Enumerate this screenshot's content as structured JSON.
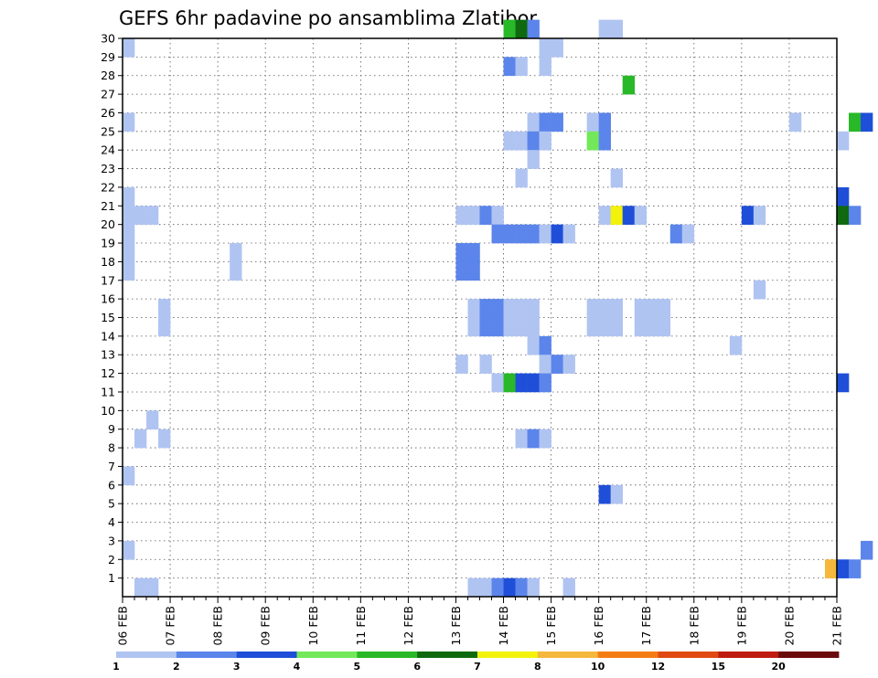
{
  "chart_data": {
    "type": "heatmap",
    "title": "GEFS 6hr padavine po ansamblima Zlatibor",
    "xlabel": "",
    "ylabel": "",
    "x_tick_labels": [
      "06 FEB",
      "07 FEB",
      "08 FEB",
      "09 FEB",
      "10 FEB",
      "11 FEB",
      "12 FEB",
      "13 FEB",
      "14 FEB",
      "15 FEB",
      "16 FEB",
      "17 FEB",
      "18 FEB",
      "19 FEB",
      "20 FEB",
      "21 FEB"
    ],
    "y_tick_labels": [
      "1",
      "2",
      "3",
      "4",
      "5",
      "6",
      "7",
      "8",
      "9",
      "10",
      "11",
      "12",
      "13",
      "14",
      "15",
      "16",
      "17",
      "18",
      "19",
      "20",
      "21",
      "22",
      "23",
      "24",
      "25",
      "26",
      "27",
      "28",
      "29",
      "30"
    ],
    "y_range": [
      0,
      30
    ],
    "time_step_hours": 6,
    "grid": "dotted",
    "colorbar": {
      "levels": [
        "1",
        "2",
        "3",
        "4",
        "5",
        "6",
        "7",
        "8",
        "10",
        "12",
        "15",
        "20"
      ],
      "colors": [
        "#b0c4f2",
        "#5b85ea",
        "#1f4fd8",
        "#72e85a",
        "#28b828",
        "#0f6a0f",
        "#f2f20a",
        "#f5b83c",
        "#f57c14",
        "#e04a12",
        "#c01b10",
        "#6b0a0a"
      ],
      "position": "bottom"
    },
    "cells": [
      {
        "member": 30,
        "step": 32,
        "bin": 5
      },
      {
        "member": 30,
        "step": 33,
        "bin": 6
      },
      {
        "member": 30,
        "step": 34,
        "bin": 2
      },
      {
        "member": 30,
        "step": 40,
        "bin": 1
      },
      {
        "member": 30,
        "step": 41,
        "bin": 1
      },
      {
        "member": 29,
        "step": 0,
        "bin": 1
      },
      {
        "member": 29,
        "step": 35,
        "bin": 1
      },
      {
        "member": 29,
        "step": 36,
        "bin": 1
      },
      {
        "member": 28,
        "step": 32,
        "bin": 2
      },
      {
        "member": 28,
        "step": 33,
        "bin": 1
      },
      {
        "member": 28,
        "step": 35,
        "bin": 1
      },
      {
        "member": 27,
        "step": 42,
        "bin": 5
      },
      {
        "member": 25,
        "step": 0,
        "bin": 1
      },
      {
        "member": 25,
        "step": 34,
        "bin": 1
      },
      {
        "member": 25,
        "step": 35,
        "bin": 2
      },
      {
        "member": 25,
        "step": 36,
        "bin": 2
      },
      {
        "member": 25,
        "step": 39,
        "bin": 1
      },
      {
        "member": 25,
        "step": 40,
        "bin": 2
      },
      {
        "member": 25,
        "step": 56,
        "bin": 1
      },
      {
        "member": 25,
        "step": 61,
        "bin": 5
      },
      {
        "member": 25,
        "step": 62,
        "bin": 3
      },
      {
        "member": 24,
        "step": 32,
        "bin": 1
      },
      {
        "member": 24,
        "step": 33,
        "bin": 1
      },
      {
        "member": 24,
        "step": 34,
        "bin": 2
      },
      {
        "member": 24,
        "step": 35,
        "bin": 1
      },
      {
        "member": 24,
        "step": 39,
        "bin": 4
      },
      {
        "member": 24,
        "step": 40,
        "bin": 2
      },
      {
        "member": 24,
        "step": 60,
        "bin": 1
      },
      {
        "member": 23,
        "step": 34,
        "bin": 1
      },
      {
        "member": 22,
        "step": 33,
        "bin": 1
      },
      {
        "member": 22,
        "step": 41,
        "bin": 1
      },
      {
        "member": 21,
        "step": 0,
        "bin": 1
      },
      {
        "member": 21,
        "step": 60,
        "bin": 3
      },
      {
        "member": 20,
        "step": 0,
        "bin": 1
      },
      {
        "member": 20,
        "step": 1,
        "bin": 1
      },
      {
        "member": 20,
        "step": 2,
        "bin": 1
      },
      {
        "member": 20,
        "step": 28,
        "bin": 1
      },
      {
        "member": 20,
        "step": 29,
        "bin": 1
      },
      {
        "member": 20,
        "step": 30,
        "bin": 2
      },
      {
        "member": 20,
        "step": 31,
        "bin": 1
      },
      {
        "member": 20,
        "step": 40,
        "bin": 1
      },
      {
        "member": 20,
        "step": 41,
        "bin": 7
      },
      {
        "member": 20,
        "step": 42,
        "bin": 3
      },
      {
        "member": 20,
        "step": 43,
        "bin": 1
      },
      {
        "member": 20,
        "step": 52,
        "bin": 3
      },
      {
        "member": 20,
        "step": 53,
        "bin": 1
      },
      {
        "member": 20,
        "step": 60,
        "bin": 6
      },
      {
        "member": 20,
        "step": 61,
        "bin": 2
      },
      {
        "member": 19,
        "step": 0,
        "bin": 1
      },
      {
        "member": 19,
        "step": 31,
        "bin": 2
      },
      {
        "member": 19,
        "step": 32,
        "bin": 2
      },
      {
        "member": 19,
        "step": 33,
        "bin": 2
      },
      {
        "member": 19,
        "step": 34,
        "bin": 2
      },
      {
        "member": 19,
        "step": 35,
        "bin": 1
      },
      {
        "member": 19,
        "step": 36,
        "bin": 3
      },
      {
        "member": 19,
        "step": 37,
        "bin": 1
      },
      {
        "member": 19,
        "step": 46,
        "bin": 2
      },
      {
        "member": 19,
        "step": 47,
        "bin": 1
      },
      {
        "member": 18,
        "step": 0,
        "bin": 1
      },
      {
        "member": 18,
        "step": 9,
        "bin": 1
      },
      {
        "member": 18,
        "step": 28,
        "bin": 2
      },
      {
        "member": 18,
        "step": 29,
        "bin": 2
      },
      {
        "member": 17,
        "step": 0,
        "bin": 1
      },
      {
        "member": 17,
        "step": 9,
        "bin": 1
      },
      {
        "member": 17,
        "step": 28,
        "bin": 2
      },
      {
        "member": 17,
        "step": 29,
        "bin": 2
      },
      {
        "member": 16,
        "step": 53,
        "bin": 1
      },
      {
        "member": 15,
        "step": 3,
        "bin": 1
      },
      {
        "member": 15,
        "step": 29,
        "bin": 1
      },
      {
        "member": 15,
        "step": 30,
        "bin": 2
      },
      {
        "member": 15,
        "step": 31,
        "bin": 2
      },
      {
        "member": 15,
        "step": 32,
        "bin": 1
      },
      {
        "member": 15,
        "step": 33,
        "bin": 1
      },
      {
        "member": 15,
        "step": 34,
        "bin": 1
      },
      {
        "member": 15,
        "step": 39,
        "bin": 1
      },
      {
        "member": 15,
        "step": 40,
        "bin": 1
      },
      {
        "member": 15,
        "step": 41,
        "bin": 1
      },
      {
        "member": 15,
        "step": 43,
        "bin": 1
      },
      {
        "member": 15,
        "step": 44,
        "bin": 1
      },
      {
        "member": 15,
        "step": 45,
        "bin": 1
      },
      {
        "member": 14,
        "step": 3,
        "bin": 1
      },
      {
        "member": 14,
        "step": 29,
        "bin": 1
      },
      {
        "member": 14,
        "step": 30,
        "bin": 2
      },
      {
        "member": 14,
        "step": 31,
        "bin": 2
      },
      {
        "member": 14,
        "step": 32,
        "bin": 1
      },
      {
        "member": 14,
        "step": 33,
        "bin": 1
      },
      {
        "member": 14,
        "step": 34,
        "bin": 1
      },
      {
        "member": 14,
        "step": 39,
        "bin": 1
      },
      {
        "member": 14,
        "step": 40,
        "bin": 1
      },
      {
        "member": 14,
        "step": 41,
        "bin": 1
      },
      {
        "member": 14,
        "step": 43,
        "bin": 1
      },
      {
        "member": 14,
        "step": 44,
        "bin": 1
      },
      {
        "member": 14,
        "step": 45,
        "bin": 1
      },
      {
        "member": 13,
        "step": 34,
        "bin": 1
      },
      {
        "member": 13,
        "step": 35,
        "bin": 2
      },
      {
        "member": 13,
        "step": 51,
        "bin": 1
      },
      {
        "member": 12,
        "step": 28,
        "bin": 1
      },
      {
        "member": 12,
        "step": 30,
        "bin": 1
      },
      {
        "member": 12,
        "step": 35,
        "bin": 1
      },
      {
        "member": 12,
        "step": 36,
        "bin": 2
      },
      {
        "member": 12,
        "step": 37,
        "bin": 1
      },
      {
        "member": 11,
        "step": 31,
        "bin": 1
      },
      {
        "member": 11,
        "step": 32,
        "bin": 5
      },
      {
        "member": 11,
        "step": 33,
        "bin": 3
      },
      {
        "member": 11,
        "step": 34,
        "bin": 3
      },
      {
        "member": 11,
        "step": 35,
        "bin": 2
      },
      {
        "member": 11,
        "step": 60,
        "bin": 3
      },
      {
        "member": 9,
        "step": 2,
        "bin": 1
      },
      {
        "member": 8,
        "step": 1,
        "bin": 1
      },
      {
        "member": 8,
        "step": 3,
        "bin": 1
      },
      {
        "member": 8,
        "step": 33,
        "bin": 1
      },
      {
        "member": 8,
        "step": 34,
        "bin": 2
      },
      {
        "member": 8,
        "step": 35,
        "bin": 1
      },
      {
        "member": 6,
        "step": 0,
        "bin": 1
      },
      {
        "member": 5,
        "step": 40,
        "bin": 3
      },
      {
        "member": 5,
        "step": 41,
        "bin": 1
      },
      {
        "member": 2,
        "step": 0,
        "bin": 1
      },
      {
        "member": 2,
        "step": 62,
        "bin": 2
      },
      {
        "member": 1,
        "step": 59,
        "bin": 8
      },
      {
        "member": 1,
        "step": 60,
        "bin": 3
      },
      {
        "member": 1,
        "step": 61,
        "bin": 2
      },
      {
        "member": 0,
        "step": 1,
        "bin": 1
      },
      {
        "member": 0,
        "step": 2,
        "bin": 1
      },
      {
        "member": 0,
        "step": 29,
        "bin": 1
      },
      {
        "member": 0,
        "step": 30,
        "bin": 1
      },
      {
        "member": 0,
        "step": 31,
        "bin": 2
      },
      {
        "member": 0,
        "step": 32,
        "bin": 3
      },
      {
        "member": 0,
        "step": 33,
        "bin": 2
      },
      {
        "member": 0,
        "step": 34,
        "bin": 1
      },
      {
        "member": 0,
        "step": 37,
        "bin": 1
      }
    ]
  }
}
